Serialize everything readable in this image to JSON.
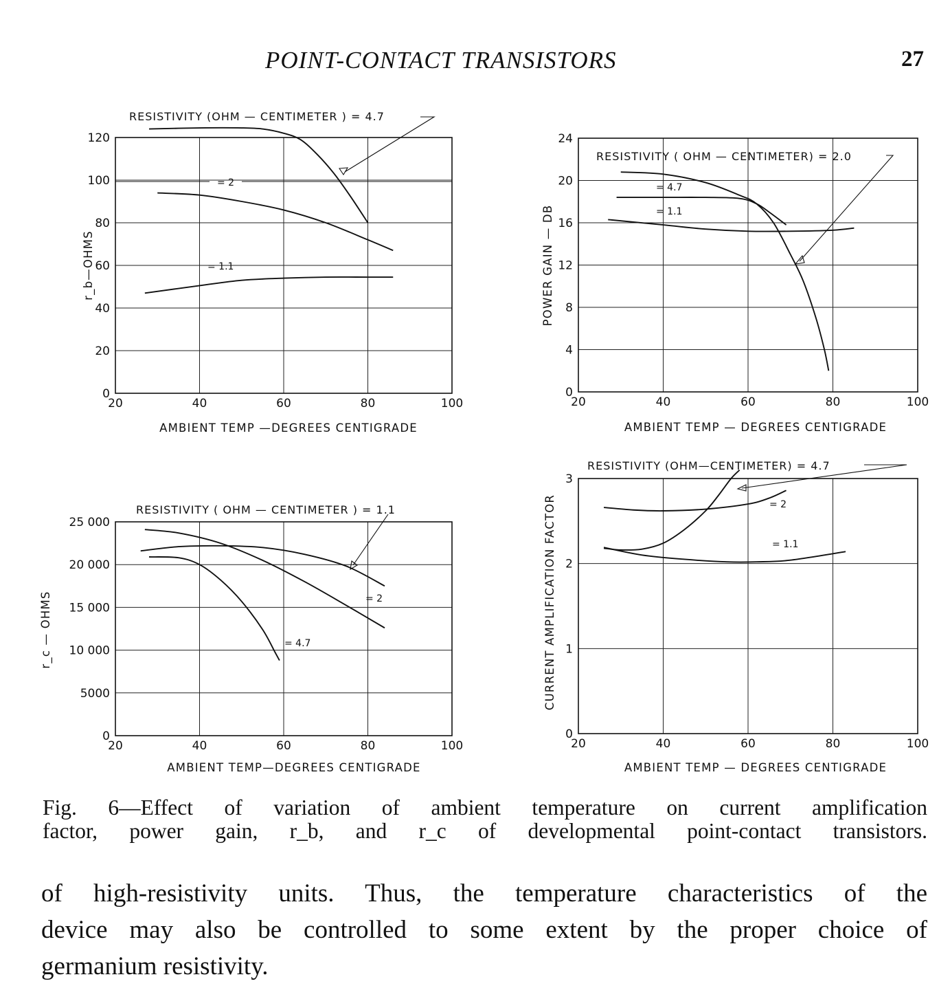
{
  "running_head": {
    "title": "POINT-CONTACT TRANSISTORS",
    "page_number": "27"
  },
  "chart_data": [
    {
      "type": "line",
      "id": "rb",
      "ylabel": "r_b—OHMS",
      "xlabel": "AMBIENT TEMP —DEGREES CENTIGRADE",
      "xlim": [
        20,
        100
      ],
      "ylim": [
        0,
        120
      ],
      "x_ticks": [
        "20",
        "40",
        "60",
        "80",
        "100"
      ],
      "y_ticks": [
        "0",
        "20",
        "40",
        "60",
        "80",
        "100",
        "120"
      ],
      "annotations": [
        "RESISTIVITY (OHM — CENTIMETER ) = 4.7",
        "= 2",
        "= 1.1"
      ],
      "series": [
        {
          "name": "4.7",
          "x": [
            28,
            40,
            50,
            55,
            60,
            64,
            68,
            72,
            76,
            80
          ],
          "y": [
            124,
            124.5,
            124.5,
            124,
            122,
            119,
            112,
            103,
            92,
            80
          ]
        },
        {
          "name": "2",
          "x": [
            30,
            40,
            50,
            60,
            70,
            80,
            86
          ],
          "y": [
            94,
            93,
            90,
            86,
            80,
            72,
            67
          ]
        },
        {
          "name": "1.1",
          "x": [
            27,
            40,
            50,
            60,
            70,
            80,
            86
          ],
          "y": [
            47,
            50.5,
            53,
            54,
            54.5,
            54.5,
            54.5
          ]
        }
      ]
    },
    {
      "type": "line",
      "id": "power-gain",
      "ylabel": "POWER GAIN — DB",
      "xlabel": "AMBIENT TEMP — DEGREES CENTIGRADE",
      "xlim": [
        20,
        100
      ],
      "ylim": [
        0,
        24
      ],
      "x_ticks": [
        "20",
        "40",
        "60",
        "80",
        "100"
      ],
      "y_ticks": [
        "0",
        "4",
        "8",
        "12",
        "16",
        "20",
        "24"
      ],
      "annotations": [
        "RESISTIVITY ( OHM — CENTIMETER) = 2.0",
        "= 4.7",
        "= 1.1"
      ],
      "series": [
        {
          "name": "2.0",
          "x": [
            30,
            40,
            50,
            58,
            62,
            66,
            70,
            73,
            76,
            78,
            79
          ],
          "y": [
            20.8,
            20.6,
            19.8,
            18.6,
            17.8,
            16,
            13,
            10.5,
            7,
            4,
            2
          ]
        },
        {
          "name": "4.7",
          "x": [
            29,
            40,
            50,
            58,
            62,
            65,
            69
          ],
          "y": [
            18.4,
            18.4,
            18.4,
            18.3,
            17.8,
            17,
            15.8
          ]
        },
        {
          "name": "1.1",
          "x": [
            27,
            40,
            50,
            60,
            70,
            80,
            85
          ],
          "y": [
            16.3,
            15.8,
            15.4,
            15.2,
            15.2,
            15.3,
            15.5
          ]
        }
      ]
    },
    {
      "type": "line",
      "id": "rc",
      "ylabel": "r_c — OHMS",
      "xlabel": "AMBIENT TEMP—DEGREES CENTIGRADE",
      "xlim": [
        20,
        100
      ],
      "ylim": [
        0,
        25000
      ],
      "x_ticks": [
        "20",
        "40",
        "60",
        "80",
        "100"
      ],
      "y_ticks": [
        "0",
        "5000",
        "10 000",
        "15 000",
        "20 000",
        "25 000"
      ],
      "annotations": [
        "RESISTIVITY ( OHM — CENTIMETER ) = 1.1",
        "= 2",
        "= 4.7"
      ],
      "series": [
        {
          "name": "1.1",
          "x": [
            26,
            35,
            45,
            55,
            65,
            75,
            84
          ],
          "y": [
            21600,
            22100,
            22200,
            22000,
            21200,
            19800,
            17500
          ]
        },
        {
          "name": "2",
          "x": [
            27,
            35,
            45,
            55,
            65,
            75,
            84
          ],
          "y": [
            24100,
            23700,
            22500,
            20500,
            18000,
            15200,
            12600
          ]
        },
        {
          "name": "4.7",
          "x": [
            28,
            35,
            40,
            45,
            50,
            55,
            58,
            59
          ],
          "y": [
            20900,
            20800,
            20000,
            18200,
            15700,
            12400,
            9700,
            8800
          ]
        }
      ]
    },
    {
      "type": "line",
      "id": "current-amplification",
      "ylabel": "CURRENT AMPLIFICATION FACTOR",
      "xlabel": "AMBIENT TEMP — DEGREES CENTIGRADE",
      "xlim": [
        20,
        100
      ],
      "ylim": [
        0,
        3
      ],
      "x_ticks": [
        "20",
        "40",
        "60",
        "80",
        "100"
      ],
      "y_ticks": [
        "0",
        "1",
        "2",
        "3"
      ],
      "annotations": [
        "RESISTIVITY (OHM—CENTIMETER) = 4.7",
        "= 2",
        "= 1.1"
      ],
      "series": [
        {
          "name": "4.7",
          "x": [
            26,
            30,
            35,
            40,
            45,
            50,
            53,
            56,
            58
          ],
          "y": [
            2.18,
            2.16,
            2.17,
            2.24,
            2.4,
            2.62,
            2.8,
            3.0,
            3.1
          ]
        },
        {
          "name": "2",
          "x": [
            26,
            33,
            40,
            50,
            60,
            65,
            69
          ],
          "y": [
            2.66,
            2.63,
            2.62,
            2.64,
            2.7,
            2.77,
            2.86
          ]
        },
        {
          "name": "1.1",
          "x": [
            26,
            35,
            45,
            55,
            62,
            70,
            83
          ],
          "y": [
            2.19,
            2.1,
            2.05,
            2.02,
            2.02,
            2.04,
            2.14
          ]
        }
      ]
    }
  ],
  "caption": {
    "line1": "Fig. 6—Effect of variation of ambient temperature on current amplification",
    "line2": "factor, power gain, r_b, and r_c of developmental point-contact transistors."
  },
  "body_text": {
    "line1": "of high-resistivity units. Thus, the temperature characteristics of the",
    "line2": "device may also be controlled to some extent by the proper choice of",
    "line3": "germanium resistivity."
  }
}
